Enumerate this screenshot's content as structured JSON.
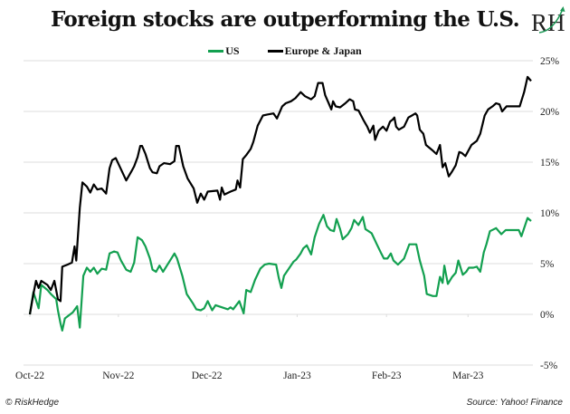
{
  "brand": {
    "logo_text": "RH",
    "copyright": "© RiskHedge",
    "source": "Source: Yahoo! Finance"
  },
  "colors": {
    "us": "#13a050",
    "europe_japan": "#000000",
    "grid": "#dcdcdc"
  },
  "chart_data": {
    "type": "line",
    "title": "Foreign stocks are outperforming the U.S.",
    "xlabel": "",
    "ylabel": "",
    "x_unit": "months since Oct-22 tick",
    "x_tick_labels": [
      "Oct-22",
      "Nov-22",
      "Dec-22",
      "Jan-23",
      "Feb-23",
      "Mar-23"
    ],
    "x_tick_positions": [
      0,
      1.01,
      2.02,
      3.05,
      4.07,
      5.0
    ],
    "xlim": [
      0,
      5.72
    ],
    "y_tick_labels": [
      "25%",
      "20%",
      "15%",
      "10%",
      "5%",
      "0%",
      "-5%"
    ],
    "y_ticks": [
      25,
      20,
      15,
      10,
      5,
      0,
      -5
    ],
    "ylim": [
      -5,
      25
    ],
    "grid": "horizontal",
    "legend_position": "top-center",
    "y_axis_side": "right",
    "series": [
      {
        "name": "US",
        "color_key": "us",
        "points": [
          [
            0.0,
            0.0
          ],
          [
            0.04,
            2.2
          ],
          [
            0.1,
            0.6
          ],
          [
            0.13,
            2.9
          ],
          [
            0.2,
            2.4
          ],
          [
            0.24,
            2.0
          ],
          [
            0.3,
            1.5
          ],
          [
            0.32,
            0.4
          ],
          [
            0.35,
            -0.9
          ],
          [
            0.37,
            -1.6
          ],
          [
            0.4,
            -0.4
          ],
          [
            0.49,
            0.2
          ],
          [
            0.54,
            0.8
          ],
          [
            0.57,
            -1.3
          ],
          [
            0.61,
            3.8
          ],
          [
            0.65,
            4.6
          ],
          [
            0.69,
            4.2
          ],
          [
            0.73,
            4.6
          ],
          [
            0.77,
            4.0
          ],
          [
            0.82,
            4.5
          ],
          [
            0.87,
            4.4
          ],
          [
            0.91,
            6.0
          ],
          [
            0.96,
            6.2
          ],
          [
            1.0,
            6.1
          ],
          [
            1.04,
            5.3
          ],
          [
            1.1,
            4.4
          ],
          [
            1.15,
            4.2
          ],
          [
            1.19,
            5.1
          ],
          [
            1.23,
            7.6
          ],
          [
            1.28,
            7.3
          ],
          [
            1.32,
            6.7
          ],
          [
            1.37,
            5.5
          ],
          [
            1.4,
            4.4
          ],
          [
            1.44,
            4.2
          ],
          [
            1.48,
            4.8
          ],
          [
            1.52,
            4.2
          ],
          [
            1.6,
            5.3
          ],
          [
            1.65,
            6.0
          ],
          [
            1.68,
            5.5
          ],
          [
            1.74,
            3.8
          ],
          [
            1.79,
            2.0
          ],
          [
            1.86,
            1.1
          ],
          [
            1.9,
            0.5
          ],
          [
            1.95,
            0.4
          ],
          [
            1.99,
            0.6
          ],
          [
            2.03,
            1.3
          ],
          [
            2.08,
            0.4
          ],
          [
            2.12,
            0.9
          ],
          [
            2.19,
            0.7
          ],
          [
            2.26,
            0.5
          ],
          [
            2.29,
            0.7
          ],
          [
            2.32,
            0.5
          ],
          [
            2.39,
            1.3
          ],
          [
            2.44,
            0.1
          ],
          [
            2.47,
            2.4
          ],
          [
            2.52,
            2.2
          ],
          [
            2.57,
            3.4
          ],
          [
            2.63,
            4.5
          ],
          [
            2.68,
            4.9
          ],
          [
            2.73,
            5.0
          ],
          [
            2.81,
            4.9
          ],
          [
            2.84,
            3.6
          ],
          [
            2.87,
            2.6
          ],
          [
            2.9,
            3.8
          ],
          [
            2.97,
            4.7
          ],
          [
            3.01,
            5.2
          ],
          [
            3.04,
            5.4
          ],
          [
            3.09,
            6.0
          ],
          [
            3.12,
            6.5
          ],
          [
            3.16,
            6.8
          ],
          [
            3.21,
            5.9
          ],
          [
            3.25,
            7.6
          ],
          [
            3.3,
            8.9
          ],
          [
            3.35,
            9.8
          ],
          [
            3.39,
            8.7
          ],
          [
            3.43,
            8.3
          ],
          [
            3.47,
            8.2
          ],
          [
            3.5,
            9.4
          ],
          [
            3.54,
            8.4
          ],
          [
            3.57,
            7.4
          ],
          [
            3.63,
            7.9
          ],
          [
            3.67,
            8.5
          ],
          [
            3.7,
            9.3
          ],
          [
            3.75,
            8.8
          ],
          [
            3.8,
            9.6
          ],
          [
            3.83,
            8.4
          ],
          [
            3.9,
            8.0
          ],
          [
            3.96,
            6.9
          ],
          [
            4.01,
            6.0
          ],
          [
            4.04,
            5.5
          ],
          [
            4.08,
            5.5
          ],
          [
            4.12,
            6.0
          ],
          [
            4.15,
            5.3
          ],
          [
            4.2,
            4.9
          ],
          [
            4.27,
            5.5
          ],
          [
            4.33,
            6.9
          ],
          [
            4.36,
            6.9
          ],
          [
            4.41,
            6.9
          ],
          [
            4.45,
            5.3
          ],
          [
            4.5,
            3.8
          ],
          [
            4.53,
            2.0
          ],
          [
            4.6,
            1.8
          ],
          [
            4.64,
            1.8
          ],
          [
            4.68,
            3.7
          ],
          [
            4.71,
            3.1
          ],
          [
            4.73,
            4.8
          ],
          [
            4.77,
            3.0
          ],
          [
            4.82,
            3.7
          ],
          [
            4.86,
            4.1
          ],
          [
            4.89,
            5.3
          ],
          [
            4.94,
            3.9
          ],
          [
            4.98,
            4.2
          ],
          [
            5.01,
            4.6
          ],
          [
            5.06,
            4.6
          ],
          [
            5.1,
            4.7
          ],
          [
            5.14,
            4.2
          ],
          [
            5.18,
            6.1
          ],
          [
            5.21,
            6.9
          ],
          [
            5.25,
            8.2
          ],
          [
            5.32,
            8.5
          ],
          [
            5.38,
            7.9
          ],
          [
            5.43,
            8.3
          ],
          [
            5.52,
            8.3
          ],
          [
            5.58,
            8.3
          ],
          [
            5.61,
            7.7
          ],
          [
            5.68,
            9.5
          ],
          [
            5.72,
            9.2
          ]
        ]
      },
      {
        "name": "Europe & Japan",
        "color_key": "europe_japan",
        "points": [
          [
            0.0,
            0.0
          ],
          [
            0.04,
            2.0
          ],
          [
            0.07,
            3.3
          ],
          [
            0.1,
            2.6
          ],
          [
            0.13,
            3.3
          ],
          [
            0.2,
            2.9
          ],
          [
            0.24,
            2.4
          ],
          [
            0.28,
            3.3
          ],
          [
            0.32,
            1.5
          ],
          [
            0.35,
            1.3
          ],
          [
            0.37,
            4.7
          ],
          [
            0.43,
            4.9
          ],
          [
            0.48,
            5.1
          ],
          [
            0.51,
            6.7
          ],
          [
            0.53,
            5.3
          ],
          [
            0.57,
            10.5
          ],
          [
            0.6,
            13.0
          ],
          [
            0.65,
            12.6
          ],
          [
            0.69,
            12.0
          ],
          [
            0.73,
            12.8
          ],
          [
            0.77,
            12.3
          ],
          [
            0.82,
            12.4
          ],
          [
            0.87,
            11.9
          ],
          [
            0.91,
            14.4
          ],
          [
            0.94,
            15.2
          ],
          [
            0.98,
            15.4
          ],
          [
            1.04,
            14.3
          ],
          [
            1.1,
            13.2
          ],
          [
            1.16,
            14.1
          ],
          [
            1.19,
            14.6
          ],
          [
            1.23,
            15.5
          ],
          [
            1.26,
            16.6
          ],
          [
            1.28,
            16.6
          ],
          [
            1.32,
            15.8
          ],
          [
            1.37,
            14.4
          ],
          [
            1.4,
            14.0
          ],
          [
            1.45,
            13.9
          ],
          [
            1.48,
            14.6
          ],
          [
            1.53,
            14.9
          ],
          [
            1.6,
            14.8
          ],
          [
            1.65,
            15.1
          ],
          [
            1.67,
            16.6
          ],
          [
            1.7,
            16.6
          ],
          [
            1.75,
            14.6
          ],
          [
            1.8,
            13.4
          ],
          [
            1.87,
            12.4
          ],
          [
            1.91,
            11.0
          ],
          [
            1.95,
            11.9
          ],
          [
            1.99,
            11.3
          ],
          [
            2.03,
            12.1
          ],
          [
            2.14,
            12.2
          ],
          [
            2.17,
            11.3
          ],
          [
            2.19,
            12.5
          ],
          [
            2.22,
            11.8
          ],
          [
            2.29,
            12.1
          ],
          [
            2.35,
            12.3
          ],
          [
            2.37,
            13.2
          ],
          [
            2.4,
            12.5
          ],
          [
            2.43,
            15.3
          ],
          [
            2.47,
            15.7
          ],
          [
            2.52,
            16.3
          ],
          [
            2.55,
            17.0
          ],
          [
            2.6,
            18.6
          ],
          [
            2.66,
            19.6
          ],
          [
            2.71,
            19.7
          ],
          [
            2.78,
            19.8
          ],
          [
            2.82,
            19.3
          ],
          [
            2.88,
            20.5
          ],
          [
            2.92,
            20.8
          ],
          [
            2.98,
            21.0
          ],
          [
            3.03,
            21.3
          ],
          [
            3.09,
            21.9
          ],
          [
            3.14,
            21.5
          ],
          [
            3.21,
            21.2
          ],
          [
            3.25,
            21.5
          ],
          [
            3.29,
            22.8
          ],
          [
            3.34,
            22.8
          ],
          [
            3.37,
            21.6
          ],
          [
            3.41,
            20.8
          ],
          [
            3.44,
            20.2
          ],
          [
            3.46,
            21.0
          ],
          [
            3.49,
            20.5
          ],
          [
            3.54,
            20.4
          ],
          [
            3.6,
            20.8
          ],
          [
            3.65,
            21.2
          ],
          [
            3.69,
            21.0
          ],
          [
            3.71,
            20.2
          ],
          [
            3.75,
            20.1
          ],
          [
            3.78,
            19.6
          ],
          [
            3.81,
            19.1
          ],
          [
            3.85,
            18.5
          ],
          [
            3.88,
            17.9
          ],
          [
            3.92,
            18.6
          ],
          [
            3.94,
            17.2
          ],
          [
            3.98,
            18.1
          ],
          [
            4.03,
            18.5
          ],
          [
            4.07,
            18.1
          ],
          [
            4.11,
            19.0
          ],
          [
            4.14,
            19.2
          ],
          [
            4.16,
            19.4
          ],
          [
            4.18,
            18.5
          ],
          [
            4.21,
            18.2
          ],
          [
            4.27,
            18.5
          ],
          [
            4.32,
            19.4
          ],
          [
            4.36,
            19.6
          ],
          [
            4.4,
            19.8
          ],
          [
            4.42,
            19.6
          ],
          [
            4.45,
            18.2
          ],
          [
            4.49,
            17.8
          ],
          [
            4.52,
            16.7
          ],
          [
            4.59,
            16.2
          ],
          [
            4.64,
            15.8
          ],
          [
            4.68,
            16.7
          ],
          [
            4.71,
            14.5
          ],
          [
            4.74,
            14.9
          ],
          [
            4.78,
            13.6
          ],
          [
            4.82,
            14.1
          ],
          [
            4.86,
            14.7
          ],
          [
            4.9,
            16.0
          ],
          [
            4.93,
            15.9
          ],
          [
            4.97,
            15.6
          ],
          [
            5.04,
            16.7
          ],
          [
            5.1,
            17.1
          ],
          [
            5.14,
            17.8
          ],
          [
            5.19,
            19.6
          ],
          [
            5.23,
            20.2
          ],
          [
            5.28,
            20.5
          ],
          [
            5.32,
            20.8
          ],
          [
            5.36,
            20.7
          ],
          [
            5.39,
            20.0
          ],
          [
            5.44,
            20.5
          ],
          [
            5.51,
            20.5
          ],
          [
            5.59,
            20.5
          ],
          [
            5.64,
            21.9
          ],
          [
            5.68,
            23.4
          ],
          [
            5.72,
            23.0
          ]
        ]
      }
    ]
  }
}
